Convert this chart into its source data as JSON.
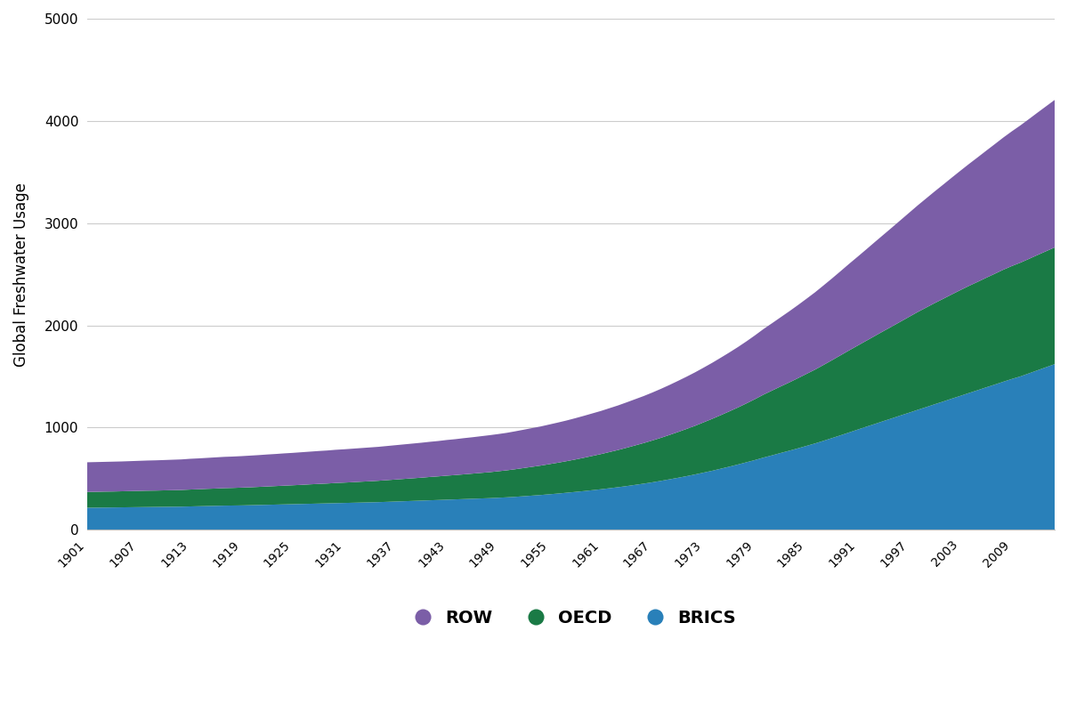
{
  "years": [
    1901,
    1902,
    1903,
    1904,
    1905,
    1906,
    1907,
    1908,
    1909,
    1910,
    1911,
    1912,
    1913,
    1914,
    1915,
    1916,
    1917,
    1918,
    1919,
    1920,
    1921,
    1922,
    1923,
    1924,
    1925,
    1926,
    1927,
    1928,
    1929,
    1930,
    1931,
    1932,
    1933,
    1934,
    1935,
    1936,
    1937,
    1938,
    1939,
    1940,
    1941,
    1942,
    1943,
    1944,
    1945,
    1946,
    1947,
    1948,
    1949,
    1950,
    1951,
    1952,
    1953,
    1954,
    1955,
    1956,
    1957,
    1958,
    1959,
    1960,
    1961,
    1962,
    1963,
    1964,
    1965,
    1966,
    1967,
    1968,
    1969,
    1970,
    1971,
    1972,
    1973,
    1974,
    1975,
    1976,
    1977,
    1978,
    1979,
    1980,
    1981,
    1982,
    1983,
    1984,
    1985,
    1986,
    1987,
    1988,
    1989,
    1990,
    1991,
    1992,
    1993,
    1994,
    1995,
    1996,
    1997,
    1998,
    1999,
    2000,
    2001,
    2002,
    2003,
    2004,
    2005,
    2006,
    2007,
    2008,
    2009,
    2010,
    2011,
    2012,
    2013,
    2014
  ],
  "BRICS": [
    215,
    216,
    217,
    218,
    219,
    220,
    221,
    222,
    223,
    224,
    225,
    226,
    228,
    230,
    232,
    234,
    236,
    237,
    238,
    240,
    242,
    244,
    246,
    248,
    250,
    252,
    254,
    256,
    258,
    260,
    262,
    264,
    266,
    268,
    270,
    273,
    276,
    279,
    282,
    285,
    288,
    291,
    294,
    297,
    300,
    303,
    306,
    309,
    313,
    317,
    322,
    328,
    334,
    340,
    347,
    354,
    362,
    370,
    378,
    387,
    396,
    406,
    416,
    427,
    439,
    451,
    464,
    478,
    493,
    508,
    524,
    541,
    559,
    577,
    597,
    617,
    638,
    660,
    682,
    706,
    728,
    751,
    773,
    796,
    820,
    844,
    870,
    897,
    924,
    952,
    980,
    1008,
    1035,
    1063,
    1090,
    1118,
    1145,
    1173,
    1200,
    1228,
    1255,
    1283,
    1310,
    1338,
    1365,
    1393,
    1420,
    1448,
    1475,
    1500,
    1530,
    1560,
    1590,
    1620
  ],
  "OECD": [
    155,
    155,
    156,
    156,
    157,
    158,
    159,
    160,
    160,
    161,
    162,
    163,
    165,
    166,
    168,
    169,
    171,
    172,
    174,
    175,
    177,
    179,
    181,
    183,
    185,
    187,
    190,
    192,
    194,
    197,
    199,
    201,
    204,
    206,
    209,
    212,
    215,
    218,
    221,
    224,
    228,
    231,
    235,
    238,
    242,
    246,
    250,
    254,
    259,
    264,
    270,
    276,
    282,
    288,
    295,
    302,
    309,
    317,
    326,
    335,
    344,
    354,
    364,
    375,
    386,
    397,
    409,
    421,
    434,
    448,
    462,
    476,
    492,
    508,
    524,
    541,
    558,
    576,
    596,
    616,
    634,
    651,
    668,
    686,
    704,
    722,
    742,
    762,
    783,
    803,
    822,
    841,
    861,
    880,
    899,
    918,
    938,
    957,
    974,
    990,
    1005,
    1020,
    1035,
    1048,
    1060,
    1072,
    1084,
    1096,
    1105,
    1113,
    1120,
    1128,
    1135,
    1142
  ],
  "ROW": [
    290,
    291,
    291,
    292,
    292,
    293,
    294,
    295,
    296,
    297,
    298,
    299,
    301,
    302,
    303,
    305,
    306,
    307,
    308,
    310,
    311,
    313,
    314,
    316,
    317,
    319,
    320,
    322,
    323,
    325,
    326,
    328,
    329,
    331,
    332,
    334,
    336,
    338,
    340,
    342,
    344,
    346,
    349,
    351,
    354,
    356,
    359,
    362,
    364,
    367,
    371,
    375,
    379,
    383,
    388,
    393,
    398,
    404,
    410,
    416,
    422,
    429,
    436,
    444,
    452,
    460,
    469,
    479,
    489,
    500,
    511,
    523,
    535,
    548,
    562,
    576,
    591,
    607,
    624,
    642,
    659,
    677,
    696,
    715,
    735,
    756,
    778,
    800,
    823,
    847,
    870,
    894,
    919,
    943,
    968,
    993,
    1018,
    1043,
    1068,
    1093,
    1118,
    1143,
    1168,
    1193,
    1218,
    1243,
    1268,
    1293,
    1318,
    1343,
    1368,
    1393,
    1418,
    1443
  ],
  "colors": {
    "BRICS": "#2980b9",
    "OECD": "#1a7a45",
    "ROW": "#7b5ea7"
  },
  "ylabel": "Global Freshwater Usage",
  "ylim": [
    0,
    5000
  ],
  "yticks": [
    0,
    1000,
    2000,
    3000,
    4000,
    5000
  ],
  "background_color": "#ffffff",
  "grid_color": "#cccccc"
}
